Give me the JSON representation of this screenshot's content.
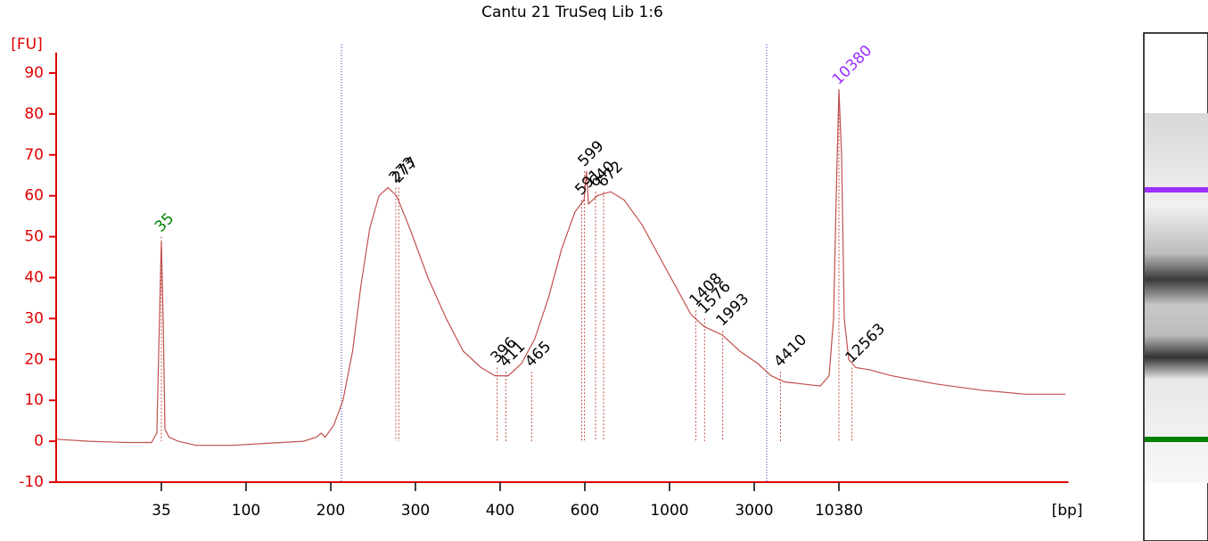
{
  "chart_data": {
    "type": "line",
    "title": "Cantu 21 TruSeq Lib 1:6",
    "y_label": "[FU]",
    "x_label": "[bp]",
    "ylim": [
      -10,
      95
    ],
    "yticks": [
      -10,
      0,
      10,
      20,
      30,
      40,
      50,
      60,
      70,
      80,
      90
    ],
    "xlim": [
      9.5,
      300000
    ],
    "xticks": [
      35,
      100,
      200,
      300,
      400,
      600,
      1000,
      3000,
      10380
    ],
    "color": "#c0504d",
    "axis_color": "#e00000",
    "x": [
      9.5,
      14.3,
      22.3,
      31,
      33.1,
      34.2,
      35,
      35.8,
      36.6,
      38.5,
      43.1,
      53.9,
      84,
      119,
      160,
      178,
      185,
      191,
      203,
      212,
      222,
      231,
      241,
      252,
      263,
      274,
      292,
      313,
      333,
      353,
      375,
      393,
      416,
      443,
      472,
      504,
      537,
      572,
      598,
      606,
      613,
      647,
      701,
      760,
      846,
      942,
      1110,
      1320,
      1570,
      1979,
      2493,
      3161,
      3845,
      4679,
      6075,
      7887,
      8994,
      9594,
      9983,
      10380,
      10795,
      11227,
      11985,
      13305,
      16186,
      22439,
      43145,
      82900,
      159000,
      286800
    ],
    "values": [
      0.5,
      0,
      -0.3,
      -0.3,
      2,
      30,
      49,
      30,
      3,
      1,
      0,
      -1,
      -1,
      -0.5,
      0,
      1,
      2,
      1,
      4,
      10,
      22,
      38,
      52,
      60,
      62,
      60,
      52,
      40,
      30,
      22,
      18,
      16,
      16,
      19,
      25,
      35,
      47,
      56,
      59,
      66,
      58,
      60,
      61,
      59,
      53,
      45,
      37,
      31,
      28,
      26,
      22,
      19,
      16,
      14.5,
      14,
      13.5,
      16,
      30,
      60,
      86,
      70,
      30,
      20,
      18,
      17.5,
      16,
      14,
      12.5,
      11.5,
      11.5
    ],
    "peaks": [
      {
        "bp": 35,
        "fu": 50,
        "color": "#008000"
      },
      {
        "bp": 273,
        "fu": 62,
        "color": "#000000"
      },
      {
        "bp": 277,
        "fu": 62,
        "color": "#000000"
      },
      {
        "bp": 396,
        "fu": 18,
        "color": "#000000"
      },
      {
        "bp": 411,
        "fu": 17,
        "color": "#000000"
      },
      {
        "bp": 465,
        "fu": 17,
        "color": "#000000"
      },
      {
        "bp": 591,
        "fu": 59,
        "color": "#000000"
      },
      {
        "bp": 599,
        "fu": 66,
        "color": "#000000"
      },
      {
        "bp": 640,
        "fu": 61,
        "color": "#000000"
      },
      {
        "bp": 672,
        "fu": 61,
        "color": "#000000"
      },
      {
        "bp": 1408,
        "fu": 32,
        "color": "#000000"
      },
      {
        "bp": 1576,
        "fu": 30,
        "color": "#000000"
      },
      {
        "bp": 1993,
        "fu": 27,
        "color": "#000000"
      },
      {
        "bp": 4410,
        "fu": 17,
        "color": "#000000"
      },
      {
        "bp": 10380,
        "fu": 86,
        "color": "#9b30ff"
      },
      {
        "bp": 12563,
        "fu": 18,
        "color": "#000000"
      }
    ]
  }
}
